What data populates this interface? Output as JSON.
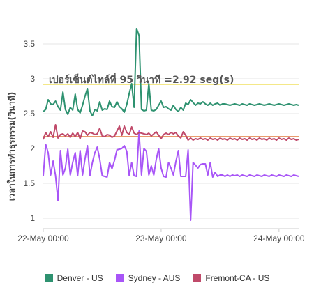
{
  "chart_data": {
    "type": "line",
    "ylabel": "เวลาในการทำธุรกรรม(วินาที)",
    "ylim": [
      0.85,
      3.95
    ],
    "yticks": [
      1,
      1.5,
      2,
      2.5,
      3,
      3.5
    ],
    "ytick_labels": [
      "1",
      "1.5",
      "2",
      "2.5",
      "3",
      "3.5"
    ],
    "xlim": [
      0,
      104
    ],
    "xticks": [
      {
        "x": 0,
        "label": "22-May 00:00"
      },
      {
        "x": 48,
        "label": "23-May 00:00"
      },
      {
        "x": 96,
        "label": "24-May 00:00"
      }
    ],
    "grid": true,
    "legend_position": "bottom",
    "annotation": {
      "text": "เปอร์เซ็นต์ไทล์ที่ 95 วินาที =2.92 seg(s)",
      "value": 2.92
    },
    "reference_lines": [
      {
        "value": 2.92,
        "color": "#f0e060"
      },
      {
        "value": 2.17,
        "color": "#e07a3c"
      }
    ],
    "series": [
      {
        "name": "Denver - US",
        "color": "#2e9270",
        "values": [
          2.53,
          2.56,
          2.7,
          2.64,
          2.63,
          2.68,
          2.6,
          2.55,
          2.81,
          2.56,
          2.49,
          2.59,
          2.55,
          2.78,
          2.56,
          2.51,
          2.62,
          2.75,
          2.86,
          2.54,
          2.47,
          2.56,
          2.54,
          2.67,
          2.55,
          2.57,
          2.56,
          2.68,
          2.6,
          2.59,
          2.67,
          2.6,
          2.57,
          2.52,
          2.63,
          2.79,
          2.93,
          2.59,
          3.72,
          3.62,
          2.56,
          2.54,
          2.55,
          2.93,
          2.55,
          2.54,
          2.56,
          2.62,
          2.68,
          2.59,
          2.6,
          2.57,
          2.55,
          2.62,
          2.56,
          2.53,
          2.59,
          2.55,
          2.65,
          2.63,
          2.7,
          2.66,
          2.62,
          2.65,
          2.64,
          2.67,
          2.64,
          2.62,
          2.65,
          2.62,
          2.64,
          2.65,
          2.62,
          2.64,
          2.64,
          2.63,
          2.62,
          2.63,
          2.64,
          2.63,
          2.62,
          2.64,
          2.63,
          2.62,
          2.64,
          2.63,
          2.62,
          2.63,
          2.64,
          2.63,
          2.62,
          2.63,
          2.64,
          2.63,
          2.62,
          2.63,
          2.64,
          2.63,
          2.62,
          2.63,
          2.64,
          2.63,
          2.62,
          2.63,
          2.62
        ]
      },
      {
        "name": "Sydney - AUS",
        "color": "#a855f7",
        "values": [
          1.61,
          2.06,
          1.94,
          1.62,
          1.82,
          1.61,
          1.25,
          1.97,
          1.62,
          1.72,
          1.99,
          1.62,
          1.8,
          1.94,
          1.61,
          1.97,
          1.62,
          1.85,
          2.04,
          1.61,
          1.8,
          1.94,
          2.02,
          1.85,
          1.61,
          1.6,
          1.59,
          1.8,
          1.71,
          1.83,
          1.98,
          1.99,
          2.0,
          2.04,
          1.96,
          1.61,
          1.8,
          1.61,
          1.6,
          2.25,
          1.62,
          2.0,
          1.96,
          1.62,
          1.75,
          1.62,
          1.84,
          2.0,
          1.72,
          1.6,
          1.59,
          1.8,
          1.72,
          1.62,
          1.81,
          1.97,
          1.6,
          1.6,
          1.6,
          1.98,
          0.97,
          1.8,
          1.76,
          1.72,
          1.77,
          1.78,
          1.78,
          1.62,
          1.8,
          1.59,
          1.66,
          1.6,
          1.62,
          1.62,
          1.6,
          1.62,
          1.6,
          1.62,
          1.61,
          1.62,
          1.6,
          1.62,
          1.61,
          1.6,
          1.62,
          1.61,
          1.6,
          1.62,
          1.61,
          1.6,
          1.62,
          1.61,
          1.6,
          1.62,
          1.61,
          1.6,
          1.62,
          1.61,
          1.6,
          1.62,
          1.61,
          1.6,
          1.62,
          1.61,
          1.6
        ]
      },
      {
        "name": "Fremont-CA - US",
        "color": "#c04a6a",
        "values": [
          2.13,
          2.23,
          2.17,
          2.24,
          2.16,
          2.34,
          2.15,
          2.2,
          2.21,
          2.18,
          2.21,
          2.16,
          2.22,
          2.17,
          2.23,
          2.14,
          2.25,
          2.24,
          2.19,
          2.23,
          2.22,
          2.2,
          2.21,
          2.29,
          2.18,
          2.17,
          2.2,
          2.19,
          2.16,
          2.18,
          2.25,
          2.32,
          2.19,
          2.32,
          2.23,
          2.2,
          2.31,
          2.22,
          2.2,
          2.23,
          2.22,
          2.21,
          2.2,
          2.22,
          2.18,
          2.21,
          2.24,
          2.19,
          2.14,
          2.2,
          2.22,
          2.2,
          2.23,
          2.21,
          2.23,
          2.18,
          2.15,
          2.24,
          2.19,
          2.12,
          2.15,
          2.12,
          2.14,
          2.13,
          2.15,
          2.13,
          2.14,
          2.12,
          2.15,
          2.13,
          2.14,
          2.12,
          2.15,
          2.13,
          2.14,
          2.12,
          2.15,
          2.13,
          2.14,
          2.12,
          2.15,
          2.13,
          2.14,
          2.12,
          2.15,
          2.13,
          2.14,
          2.12,
          2.15,
          2.13,
          2.14,
          2.12,
          2.15,
          2.13,
          2.14,
          2.12,
          2.15,
          2.13,
          2.14,
          2.12,
          2.15,
          2.13,
          2.14,
          2.12,
          2.13
        ]
      }
    ]
  }
}
